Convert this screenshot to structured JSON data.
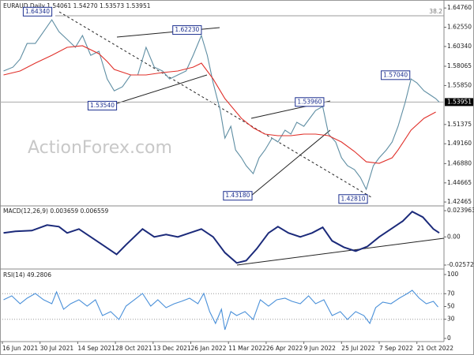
{
  "chart_data": [
    {
      "type": "line",
      "title": "EURAUD,Daily  1.54061 1.54270 1.53573 1.53951",
      "watermark": "ActionForex.com",
      "ylim": [
        1.4229,
        1.6541
      ],
      "yticks": [
        {
          "value": 1.6476,
          "label": "1.64760"
        },
        {
          "value": 1.6255,
          "label": "1.62550"
        },
        {
          "value": 1.6034,
          "label": "1.60340"
        },
        {
          "value": 1.58065,
          "label": "1.58065"
        },
        {
          "value": 1.5585,
          "label": "1.55850"
        },
        {
          "value": 1.51375,
          "label": "1.51375"
        },
        {
          "value": 1.4916,
          "label": "1.49160"
        },
        {
          "value": 1.4688,
          "label": "1.46880"
        },
        {
          "value": 1.44665,
          "label": "1.44665"
        },
        {
          "value": 1.42465,
          "label": "1.42465"
        }
      ],
      "xlim": [
        0,
        375
      ],
      "grid": false,
      "last_price": 1.53951,
      "fib": {
        "ratio": 38.2,
        "price": 1.6387
      },
      "annotations": [
        {
          "label": "1.64340",
          "value": 1.6434,
          "x": 42
        },
        {
          "label": "1.62230",
          "value": 1.6223,
          "x": 169
        },
        {
          "label": "1.53540",
          "value": 1.5354,
          "x": 97
        },
        {
          "label": "1.53960",
          "value": 1.5396,
          "x": 273
        },
        {
          "label": "1.43180",
          "value": 1.4318,
          "x": 212
        },
        {
          "label": "1.42810",
          "value": 1.4281,
          "x": 310
        },
        {
          "label": "1.57040",
          "value": 1.5704,
          "x": 346
        }
      ],
      "series": [
        {
          "color": "#5f8ea3",
          "x": [
            1,
            9,
            15,
            21,
            28,
            35,
            42,
            48,
            55,
            62,
            68,
            75,
            82,
            89,
            95,
            102,
            109,
            115,
            122,
            129,
            136,
            142,
            149,
            156,
            162,
            169,
            174,
            179,
            185,
            189,
            194,
            198,
            203,
            207,
            213,
            218,
            223,
            229,
            234,
            240,
            245,
            250,
            256,
            261,
            266,
            272,
            277,
            283,
            288,
            293,
            299,
            304,
            309,
            315,
            320,
            326,
            331,
            336,
            342,
            347,
            352,
            358,
            363,
            368,
            371
          ],
          "values": [
            1.5752,
            1.5797,
            1.5888,
            1.6069,
            1.6069,
            1.6205,
            1.6341,
            1.6205,
            1.6115,
            1.6024,
            1.616,
            1.5933,
            1.5979,
            1.5661,
            1.5525,
            1.5571,
            1.5707,
            1.5707,
            1.6024,
            1.5797,
            1.5752,
            1.5661,
            1.5707,
            1.5752,
            1.5933,
            1.616,
            1.5933,
            1.5616,
            1.5299,
            1.4981,
            1.5117,
            1.4845,
            1.4755,
            1.4664,
            1.4573,
            1.4755,
            1.4845,
            1.4981,
            1.4936,
            1.5072,
            1.5027,
            1.5163,
            1.5117,
            1.5208,
            1.5299,
            1.5344,
            1.5027,
            1.4936,
            1.4755,
            1.4664,
            1.4619,
            1.4528,
            1.4392,
            1.4664,
            1.4755,
            1.4845,
            1.4936,
            1.5117,
            1.5389,
            1.5661,
            1.5616,
            1.5525,
            1.548,
            1.5435,
            1.53951
          ]
        },
        {
          "color": "#e0302a",
          "x": [
            1,
            15,
            28,
            42,
            55,
            68,
            82,
            89,
            95,
            109,
            122,
            136,
            149,
            162,
            169,
            179,
            189,
            203,
            213,
            223,
            234,
            245,
            256,
            266,
            277,
            288,
            299,
            309,
            320,
            331,
            336,
            347,
            358,
            368
          ],
          "values": [
            1.5707,
            1.5752,
            1.5843,
            1.5933,
            1.6024,
            1.6042,
            1.5951,
            1.5861,
            1.577,
            1.5707,
            1.5707,
            1.5734,
            1.5752,
            1.5797,
            1.5843,
            1.5661,
            1.5435,
            1.5208,
            1.5099,
            1.5027,
            1.5009,
            1.5009,
            1.5027,
            1.5027,
            1.5009,
            1.4936,
            1.4827,
            1.4709,
            1.4691,
            1.4755,
            1.4845,
            1.5072,
            1.5208,
            1.5281
          ]
        }
      ]
    },
    {
      "type": "line",
      "title": "MACD(12,26,9) 0.003659 0.006559",
      "ylim": [
        -0.0286,
        0.0276
      ],
      "yticks": [
        0.023963,
        {
          "value": 0,
          "label": "0.00"
        },
        -0.025726
      ],
      "xlim": [
        0,
        375
      ],
      "series": [
        {
          "color": "#1b2a7a",
          "x": [
            1,
            11,
            25,
            38,
            48,
            55,
            65,
            75,
            85,
            97,
            105,
            119,
            129,
            139,
            149,
            159,
            169,
            179,
            189,
            199,
            207,
            216,
            226,
            234,
            243,
            253,
            263,
            272,
            280,
            290,
            300,
            310,
            320,
            330,
            340,
            348,
            357,
            366,
            371
          ],
          "values": [
            0.0036,
            0.0051,
            0.0058,
            0.0108,
            0.0094,
            0.0036,
            0.0072,
            0,
            -0.0072,
            -0.0159,
            -0.0072,
            0.0072,
            0,
            0.0022,
            0,
            0.0036,
            0.0072,
            0,
            -0.0144,
            -0.0238,
            -0.0217,
            -0.0108,
            0.0036,
            0.0094,
            0.0036,
            0,
            0.0036,
            0.0087,
            -0.0036,
            -0.0094,
            -0.013,
            -0.0087,
            0,
            0.0072,
            0.0144,
            0.0231,
            0.0181,
            0.0072,
            0.003659
          ]
        }
      ]
    },
    {
      "type": "line",
      "title": "RSI(14) 49.2806",
      "ylim": [
        -3.7,
        107.4
      ],
      "yticks": [
        100,
        70,
        50,
        30,
        0
      ],
      "levels": [
        70,
        30
      ],
      "xlim": [
        0,
        375
      ],
      "xticks": [
        {
          "value": 0,
          "label": "16 Jun 2021"
        },
        {
          "value": 32,
          "label": "30 Jul 2021"
        },
        {
          "value": 64,
          "label": "14 Sep 2021"
        },
        {
          "value": 96,
          "label": "28 Oct 2021"
        },
        {
          "value": 128,
          "label": "13 Dec 2021"
        },
        {
          "value": 160,
          "label": "26 Jan 2022"
        },
        {
          "value": 192,
          "label": "11 Mar 2022"
        },
        {
          "value": 224,
          "label": "26 Apr 2022"
        },
        {
          "value": 256,
          "label": "9 Jun 2022"
        },
        {
          "value": 288,
          "label": "25 Jul 2022"
        },
        {
          "value": 320,
          "label": "7 Sep 2022"
        },
        {
          "value": 352,
          "label": "21 Oct 2022"
        }
      ],
      "series": [
        {
          "color": "#4a90d9",
          "x": [
            1,
            8,
            15,
            21,
            28,
            35,
            42,
            46,
            52,
            58,
            65,
            72,
            79,
            85,
            92,
            99,
            105,
            112,
            119,
            126,
            132,
            139,
            146,
            152,
            159,
            166,
            171,
            176,
            181,
            186,
            189,
            194,
            199,
            206,
            213,
            219,
            226,
            233,
            240,
            246,
            253,
            260,
            266,
            273,
            280,
            287,
            293,
            300,
            307,
            312,
            317,
            323,
            330,
            337,
            344,
            348,
            354,
            360,
            366,
            370
          ],
          "values": [
            60.5,
            66.7,
            54.3,
            63.0,
            70.4,
            60.5,
            54.3,
            72.8,
            45.7,
            54.3,
            60.5,
            50.6,
            60.5,
            35.8,
            42.0,
            29.6,
            50.6,
            60.5,
            70.4,
            50.6,
            60.5,
            48.1,
            54.3,
            58.0,
            63.0,
            54.3,
            70.4,
            42.0,
            23.5,
            45.7,
            13.6,
            42.0,
            35.8,
            42.0,
            29.6,
            60.5,
            50.6,
            60.5,
            63.0,
            58.0,
            54.3,
            66.7,
            54.3,
            60.5,
            35.8,
            42.0,
            29.6,
            42.0,
            35.8,
            23.5,
            48.1,
            56.8,
            54.3,
            63.0,
            70.4,
            75.3,
            63.0,
            54.3,
            58.0,
            49.3
          ]
        }
      ]
    }
  ]
}
